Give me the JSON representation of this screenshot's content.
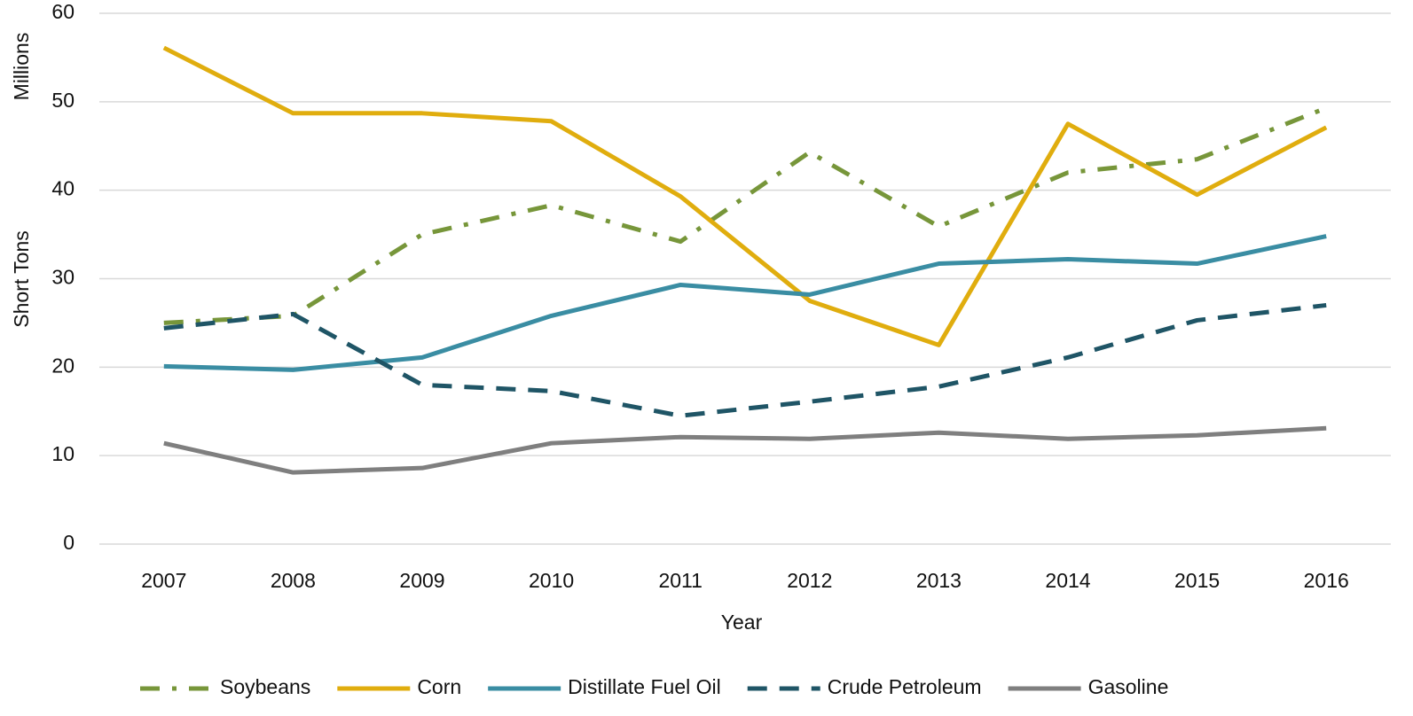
{
  "chart_data": {
    "type": "line",
    "x_label": "Year",
    "y_label": "Short Tons",
    "y_unit_label": "Millions",
    "categories": [
      "2007",
      "2008",
      "2009",
      "2010",
      "2011",
      "2012",
      "2013",
      "2014",
      "2015",
      "2016"
    ],
    "series": [
      {
        "name": "Soybeans",
        "color": "#77963a",
        "dash": "dashdot",
        "values": [
          25.0,
          25.8,
          35.0,
          38.3,
          34.2,
          44.3,
          35.9,
          42.0,
          43.5,
          49.3
        ]
      },
      {
        "name": "Corn",
        "color": "#e0ad0e",
        "dash": "solid",
        "values": [
          56.1,
          48.7,
          48.7,
          47.8,
          39.3,
          27.5,
          22.5,
          47.5,
          39.5,
          47.1
        ]
      },
      {
        "name": "Distillate Fuel Oil",
        "color": "#3a8da3",
        "dash": "solid",
        "values": [
          20.1,
          19.7,
          21.1,
          25.8,
          29.3,
          28.2,
          31.7,
          32.2,
          31.7,
          34.8
        ]
      },
      {
        "name": "Crude Petroleum",
        "color": "#1f5566",
        "dash": "dash",
        "values": [
          24.4,
          26.0,
          18.0,
          17.3,
          14.5,
          16.1,
          17.8,
          21.1,
          25.3,
          27.0
        ]
      },
      {
        "name": "Gasoline",
        "color": "#7f7f7f",
        "dash": "solid",
        "values": [
          11.4,
          8.1,
          8.6,
          11.4,
          12.1,
          11.9,
          12.6,
          11.9,
          12.3,
          13.1
        ]
      }
    ],
    "ylim": [
      0,
      60
    ],
    "yticks": [
      0,
      10,
      20,
      30,
      40,
      50,
      60
    ],
    "grid": true,
    "legend": "bottom"
  }
}
